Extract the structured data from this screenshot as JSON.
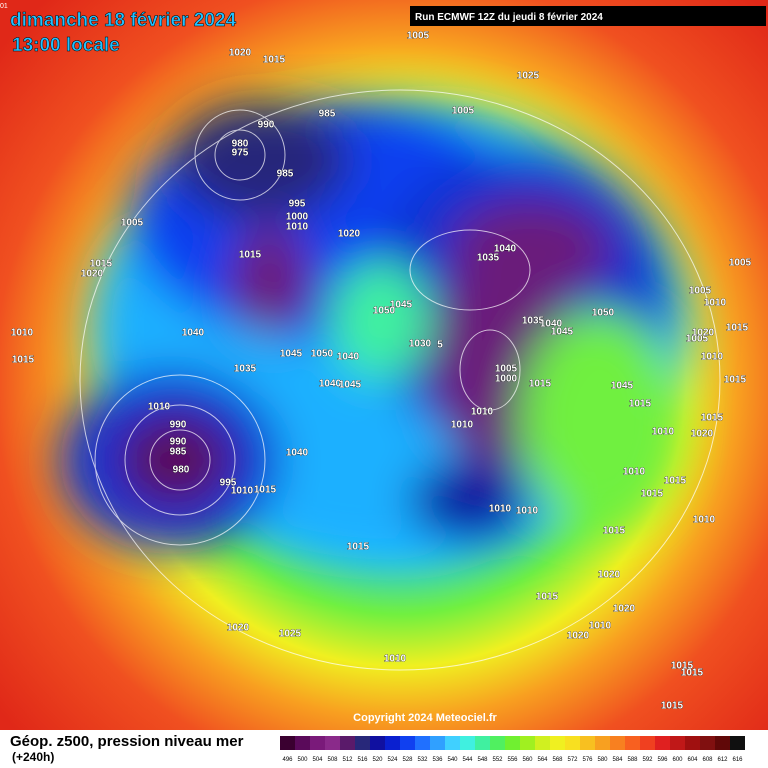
{
  "header": {
    "date": "dimanche 18 février 2024",
    "time": "13:00 locale",
    "run": "Run ECMWF 12Z du jeudi 8 février 2024",
    "corner": "01"
  },
  "map": {
    "isobar_labels": [
      "1005",
      "1020",
      "1015",
      "1025",
      "1005",
      "985",
      "990",
      "980",
      "975",
      "985",
      "995",
      "1000",
      "1010",
      "1005",
      "1020",
      "1015",
      "1040",
      "1035",
      "1015",
      "1020",
      "1005",
      "1005",
      "1010",
      "1045",
      "1050",
      "1050",
      "1035",
      "1040",
      "1045",
      "1010",
      "1040",
      "1005",
      "1015",
      "1020",
      "1030",
      "5",
      "1045",
      "1050",
      "1040",
      "1010",
      "1015",
      "1035",
      "1005",
      "1000",
      "1040",
      "1045",
      "1015",
      "1045",
      "1015",
      "1010",
      "1015",
      "1010",
      "1010",
      "990",
      "1015",
      "1010",
      "990",
      "985",
      "1020",
      "1040",
      "1010",
      "980",
      "995",
      "1010",
      "1015",
      "1015",
      "1015",
      "1010",
      "1010",
      "1010",
      "1015",
      "1015",
      "1020",
      "1015",
      "1020",
      "1010",
      "1020",
      "1020",
      "1025",
      "1010",
      "1015",
      "1015",
      "1015"
    ]
  },
  "footer": {
    "title": "Géop. z500, pression niveau mer",
    "lead": "(+240h)",
    "copyright": "Copyright 2024 Meteociel.fr"
  },
  "legend": {
    "ticks": [
      496,
      500,
      504,
      508,
      512,
      516,
      520,
      524,
      528,
      532,
      536,
      540,
      544,
      548,
      552,
      556,
      560,
      564,
      568,
      572,
      576,
      580,
      584,
      588,
      592,
      596,
      600,
      604,
      608,
      612,
      616
    ],
    "colors": [
      "#3a0030",
      "#5a0a5a",
      "#7a1a7a",
      "#8a2a8a",
      "#5a1a6a",
      "#28287a",
      "#1010a0",
      "#0a20d0",
      "#1040f0",
      "#2070ff",
      "#30a0ff",
      "#40d0ff",
      "#40f0e0",
      "#40f0a0",
      "#50f060",
      "#70f030",
      "#a0f020",
      "#d0f020",
      "#f0f020",
      "#f8e020",
      "#f8c020",
      "#f8a020",
      "#f88020",
      "#f86020",
      "#f04020",
      "#e02020",
      "#c01818",
      "#a01010",
      "#801010",
      "#600808",
      "#101010"
    ]
  }
}
